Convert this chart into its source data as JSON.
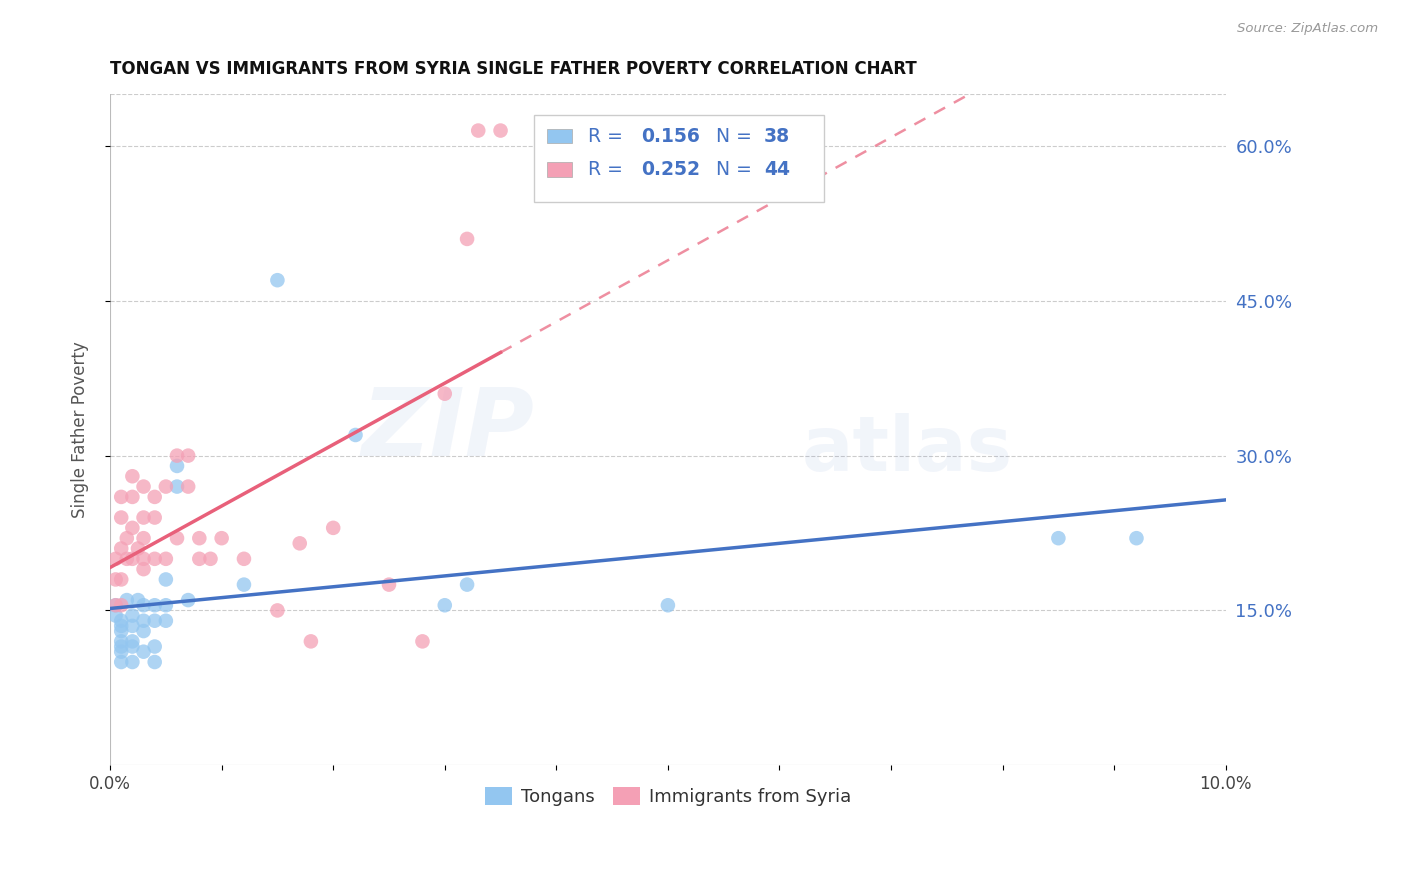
{
  "title": "TONGAN VS IMMIGRANTS FROM SYRIA SINGLE FATHER POVERTY CORRELATION CHART",
  "source": "Source: ZipAtlas.com",
  "ylabel": "Single Father Poverty",
  "xlim": [
    0.0,
    0.1
  ],
  "ylim": [
    0.0,
    0.65
  ],
  "legend_R1": "0.156",
  "legend_N1": "38",
  "legend_R2": "0.252",
  "legend_N2": "44",
  "color_tongan": "#93C6F0",
  "color_syria": "#F4A0B5",
  "color_blue": "#4472C4",
  "color_pink": "#E8607A",
  "watermark_zip": "ZIP",
  "watermark_atlas": "atlas",
  "tongan_x": [
    0.0005,
    0.0005,
    0.001,
    0.001,
    0.001,
    0.001,
    0.001,
    0.001,
    0.001,
    0.0015,
    0.002,
    0.002,
    0.002,
    0.002,
    0.002,
    0.0025,
    0.003,
    0.003,
    0.003,
    0.003,
    0.004,
    0.004,
    0.004,
    0.004,
    0.005,
    0.005,
    0.005,
    0.006,
    0.006,
    0.007,
    0.012,
    0.015,
    0.022,
    0.03,
    0.032,
    0.05,
    0.085,
    0.092
  ],
  "tongan_y": [
    0.155,
    0.145,
    0.14,
    0.135,
    0.13,
    0.12,
    0.115,
    0.11,
    0.1,
    0.16,
    0.145,
    0.135,
    0.12,
    0.115,
    0.1,
    0.16,
    0.155,
    0.14,
    0.13,
    0.11,
    0.155,
    0.14,
    0.115,
    0.1,
    0.18,
    0.155,
    0.14,
    0.29,
    0.27,
    0.16,
    0.175,
    0.47,
    0.32,
    0.155,
    0.175,
    0.155,
    0.22,
    0.22
  ],
  "syria_x": [
    0.0005,
    0.0005,
    0.0005,
    0.001,
    0.001,
    0.001,
    0.001,
    0.001,
    0.0015,
    0.0015,
    0.002,
    0.002,
    0.002,
    0.002,
    0.0025,
    0.003,
    0.003,
    0.003,
    0.003,
    0.003,
    0.004,
    0.004,
    0.004,
    0.005,
    0.005,
    0.006,
    0.006,
    0.007,
    0.007,
    0.008,
    0.008,
    0.009,
    0.01,
    0.012,
    0.015,
    0.017,
    0.018,
    0.02,
    0.025,
    0.028,
    0.03,
    0.032,
    0.033,
    0.035
  ],
  "syria_y": [
    0.155,
    0.18,
    0.2,
    0.155,
    0.18,
    0.21,
    0.24,
    0.26,
    0.2,
    0.22,
    0.2,
    0.23,
    0.26,
    0.28,
    0.21,
    0.24,
    0.27,
    0.2,
    0.22,
    0.19,
    0.26,
    0.24,
    0.2,
    0.27,
    0.2,
    0.22,
    0.3,
    0.27,
    0.3,
    0.2,
    0.22,
    0.2,
    0.22,
    0.2,
    0.15,
    0.215,
    0.12,
    0.23,
    0.175,
    0.12,
    0.36,
    0.51,
    0.615,
    0.615
  ]
}
